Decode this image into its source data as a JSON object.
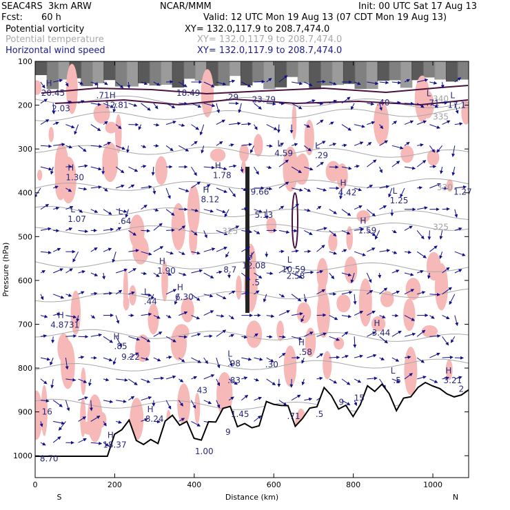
{
  "header": {
    "model": "SEAC4RS  3km ARW",
    "center": "NCAR/MMM",
    "init": "Init: 00 UTC Sat 17 Aug 13",
    "fcst_label": "Fcst:",
    "fcst_value": "60 h",
    "valid": "Valid: 12 UTC Mon 19 Aug 13 (07 CDT Mon 19 Aug 13)",
    "fields": [
      {
        "name": "Potential vorticity",
        "xy": "XY= 132.0,117.9 to 208.7,474.0",
        "color": "#000000"
      },
      {
        "name": "Potential temperature",
        "xy": "XY= 132.0,117.9 to 208.7,474.0",
        "color": "#a8a8a8"
      },
      {
        "name": "Horizontal wind speed",
        "xy": "XY= 132.0,117.9 to 208.7,474.0",
        "color": "#1a1a8c"
      }
    ]
  },
  "chart_data": {
    "type": "cross-section",
    "xlabel": "Distance (km)",
    "ylabel": "Pressure (hPa)",
    "xlim": [
      0,
      1090
    ],
    "ylim": [
      1050,
      100
    ],
    "x_ticks": [
      0,
      200,
      400,
      600,
      800,
      1000
    ],
    "y_ticks": [
      100,
      200,
      300,
      400,
      500,
      600,
      700,
      800,
      900,
      1000
    ],
    "endpoint_labels": {
      "left": "S",
      "right": "N"
    },
    "theta_labels": [
      {
        "x": 1020,
        "p": 186,
        "text": "340"
      },
      {
        "x": 1020,
        "p": 227,
        "text": "335"
      },
      {
        "x": 1030,
        "p": 388,
        "text": "330"
      },
      {
        "x": 490,
        "p": 488,
        "text": "325"
      },
      {
        "x": 1020,
        "p": 478,
        "text": "325"
      }
    ],
    "extrema": [
      {
        "x": 45,
        "p": 172,
        "letter": "H",
        "value": "20.45"
      },
      {
        "x": 65,
        "p": 208,
        "letter": "",
        "value": "2.03"
      },
      {
        "x": 170,
        "p": 178,
        "letter": "L",
        "value": ".71"
      },
      {
        "x": 205,
        "p": 200,
        "letter": "H",
        "value": "12.81"
      },
      {
        "x": 385,
        "p": 172,
        "letter": "L",
        "value": "18.49"
      },
      {
        "x": 495,
        "p": 182,
        "letter": "",
        "value": ".29"
      },
      {
        "x": 575,
        "p": 187,
        "letter": "",
        "value": "23.79"
      },
      {
        "x": 875,
        "p": 194,
        "letter": "",
        "value": ".40"
      },
      {
        "x": 1000,
        "p": 195,
        "letter": "L",
        "value": ".71"
      },
      {
        "x": 1060,
        "p": 200,
        "letter": "L",
        "value": "17.1"
      },
      {
        "x": 625,
        "p": 310,
        "letter": "L",
        "value": "4.59"
      },
      {
        "x": 720,
        "p": 315,
        "letter": "L",
        "value": ".29"
      },
      {
        "x": 100,
        "p": 365,
        "letter": "H",
        "value": "1.30"
      },
      {
        "x": 470,
        "p": 360,
        "letter": "H",
        "value": "1.78"
      },
      {
        "x": 565,
        "p": 398,
        "letter": "",
        "value": "9.66"
      },
      {
        "x": 440,
        "p": 415,
        "letter": "H",
        "value": "8.12"
      },
      {
        "x": 785,
        "p": 400,
        "letter": "H",
        "value": "4.42"
      },
      {
        "x": 915,
        "p": 418,
        "letter": "L",
        "value": "1.25"
      },
      {
        "x": 1075,
        "p": 398,
        "letter": "",
        "value": "1.27"
      },
      {
        "x": 105,
        "p": 460,
        "letter": "L",
        "value": "1.07"
      },
      {
        "x": 225,
        "p": 465,
        "letter": "L",
        "value": ".64"
      },
      {
        "x": 575,
        "p": 451,
        "letter": "",
        "value": "5.13"
      },
      {
        "x": 835,
        "p": 486,
        "letter": "H",
        "value": "1.59"
      },
      {
        "x": 330,
        "p": 578,
        "letter": "H",
        "value": "1.90"
      },
      {
        "x": 490,
        "p": 576,
        "letter": "",
        "value": "8.7"
      },
      {
        "x": 550,
        "p": 566,
        "letter": "H",
        "value": "12.08"
      },
      {
        "x": 650,
        "p": 575,
        "letter": "L",
        "value": "10.59"
      },
      {
        "x": 655,
        "p": 590,
        "letter": "",
        "value": "2.58"
      },
      {
        "x": 555,
        "p": 605,
        "letter": "",
        "value": ".5"
      },
      {
        "x": 290,
        "p": 648,
        "letter": "L",
        "value": ".44"
      },
      {
        "x": 375,
        "p": 638,
        "letter": "H",
        "value": "6.30"
      },
      {
        "x": 75,
        "p": 702,
        "letter": "H",
        "value": "4.8731"
      },
      {
        "x": 870,
        "p": 720,
        "letter": "H",
        "value": "3.44"
      },
      {
        "x": 215,
        "p": 750,
        "letter": "H",
        "value": ".85"
      },
      {
        "x": 240,
        "p": 775,
        "letter": "",
        "value": "9.22"
      },
      {
        "x": 680,
        "p": 764,
        "letter": "H",
        "value": ".58"
      },
      {
        "x": 500,
        "p": 790,
        "letter": "L",
        "value": ".98"
      },
      {
        "x": 595,
        "p": 792,
        "letter": "",
        "value": ".30"
      },
      {
        "x": 500,
        "p": 828,
        "letter": "",
        "value": ".83"
      },
      {
        "x": 420,
        "p": 851,
        "letter": "",
        "value": "43"
      },
      {
        "x": 910,
        "p": 828,
        "letter": "L",
        "value": ".5"
      },
      {
        "x": 1050,
        "p": 828,
        "letter": "H",
        "value": "3.21"
      },
      {
        "x": 1075,
        "p": 848,
        "letter": "",
        "value": "2."
      },
      {
        "x": 770,
        "p": 878,
        "letter": "",
        "value": "9"
      },
      {
        "x": 815,
        "p": 868,
        "letter": "",
        "value": "15"
      },
      {
        "x": 30,
        "p": 900,
        "letter": "",
        "value": "16"
      },
      {
        "x": 515,
        "p": 905,
        "letter": "",
        "value": "1.45"
      },
      {
        "x": 650,
        "p": 910,
        "letter": "",
        "value": ".71"
      },
      {
        "x": 715,
        "p": 905,
        "letter": "",
        "value": ".5"
      },
      {
        "x": 300,
        "p": 916,
        "letter": "H",
        "value": "8.24"
      },
      {
        "x": 485,
        "p": 946,
        "letter": "",
        "value": "9"
      },
      {
        "x": 200,
        "p": 975,
        "letter": "H",
        "value": "18.37"
      },
      {
        "x": 425,
        "p": 990,
        "letter": "",
        "value": "1.00"
      },
      {
        "x": 35,
        "p": 1007,
        "letter": "",
        "value": "8.70"
      }
    ]
  },
  "colors": {
    "frame": "#000000",
    "pv_fill": "#f7b8b8",
    "pv_contour": "#4a1040",
    "theta": "#a8a8a8",
    "wind": "#10108a",
    "terrain": "#000000",
    "stratosphere": "#505050"
  }
}
